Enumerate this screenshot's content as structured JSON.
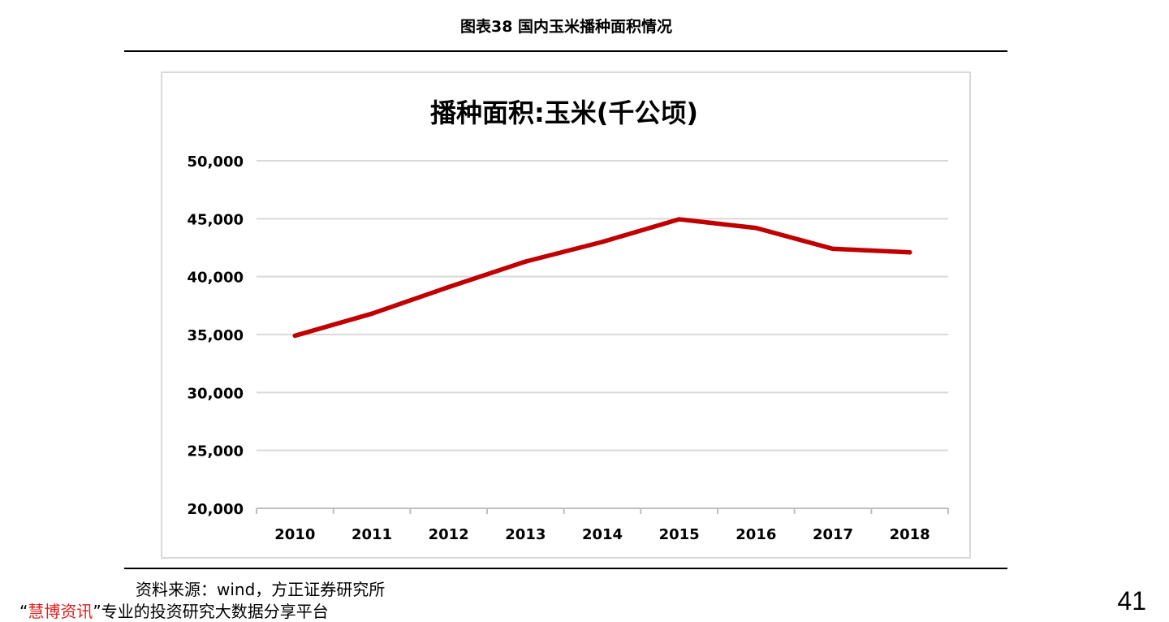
{
  "report": {
    "figure_title": "图表38  国内玉米播种面积情况",
    "source": "资料来源：wind，方正证券研究所",
    "footer_open_quote": "“",
    "footer_brand": "慧博资讯",
    "footer_close_quote": "”",
    "footer_text": "专业的投资研究大数据分享平台",
    "page_number": "41"
  },
  "chart_data": {
    "type": "line",
    "title": "播种面积:玉米(千公顷)",
    "xlabel": "",
    "ylabel": "",
    "categories": [
      "2010",
      "2011",
      "2012",
      "2013",
      "2014",
      "2015",
      "2016",
      "2017",
      "2018"
    ],
    "series": [
      {
        "values": [
          34900,
          36800,
          39100,
          41300,
          43000,
          44950,
          44200,
          42400,
          42100
        ],
        "color": "#c00000"
      }
    ],
    "ylim": [
      20000,
      50000
    ],
    "yticks": [
      20000,
      25000,
      30000,
      35000,
      40000,
      45000,
      50000
    ],
    "ytick_labels": [
      "20,000",
      "25,000",
      "30,000",
      "35,000",
      "40,000",
      "45,000",
      "50,000"
    ],
    "grid": true,
    "legend": "none"
  }
}
